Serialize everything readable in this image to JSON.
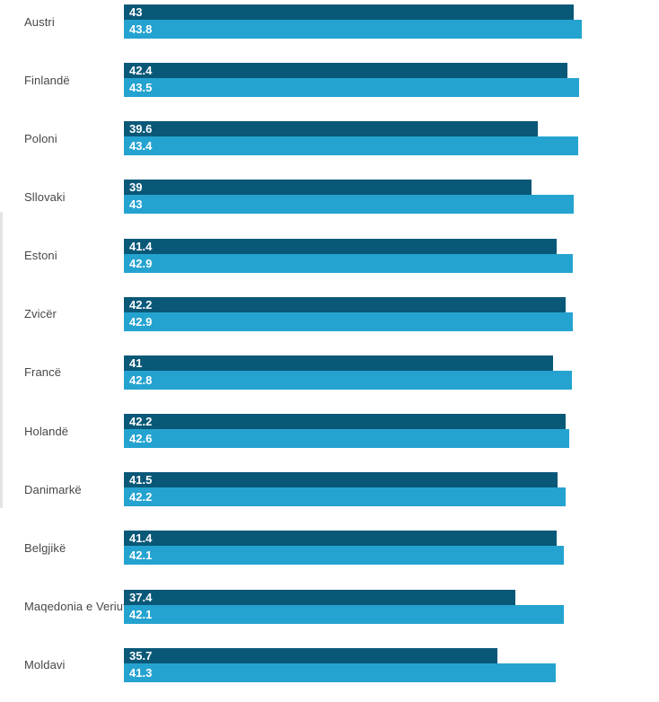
{
  "chart_data": {
    "type": "bar",
    "orientation": "horizontal",
    "title": "",
    "xlabel": "",
    "ylabel": "",
    "legend": "none",
    "axes_visible": false,
    "grid": false,
    "value_labels_inside_bars": true,
    "xlim": [
      0,
      51
    ],
    "categories": [
      "Austri",
      "Finlandë",
      "Poloni",
      "Sllovaki",
      "Estoni",
      "Zvicër",
      "Francë",
      "Holandë",
      "Danimarkë",
      "Belgjikë",
      "Maqedonia e Veriut",
      "Moldavi"
    ],
    "series": [
      {
        "name": "series_1_dark",
        "color": "#095878",
        "values": [
          43,
          42.4,
          39.6,
          39,
          41.4,
          42.2,
          41,
          42.2,
          41.5,
          41.4,
          37.4,
          35.7
        ],
        "labels": [
          "43",
          "42.4",
          "39.6",
          "39",
          "41.4",
          "42.2",
          "41",
          "42.2",
          "41.5",
          "41.4",
          "37.4",
          "35.7"
        ]
      },
      {
        "name": "series_2_light",
        "color": "#25a3d0",
        "values": [
          43.8,
          43.5,
          43.4,
          43,
          42.9,
          42.9,
          42.8,
          42.6,
          42.2,
          42.1,
          42.1,
          41.3
        ],
        "labels": [
          "43.8",
          "43.5",
          "43.4",
          "43",
          "42.9",
          "42.9",
          "42.8",
          "42.6",
          "42.2",
          "42.1",
          "42.1",
          "41.3"
        ]
      }
    ]
  },
  "colors": {
    "background": "#ffffff",
    "bar_dark": "#095878",
    "bar_light": "#25a3d0",
    "value_label": "#ffffff",
    "category_label": "#474747",
    "scrollbar_fragment": "#e4e4e4"
  }
}
